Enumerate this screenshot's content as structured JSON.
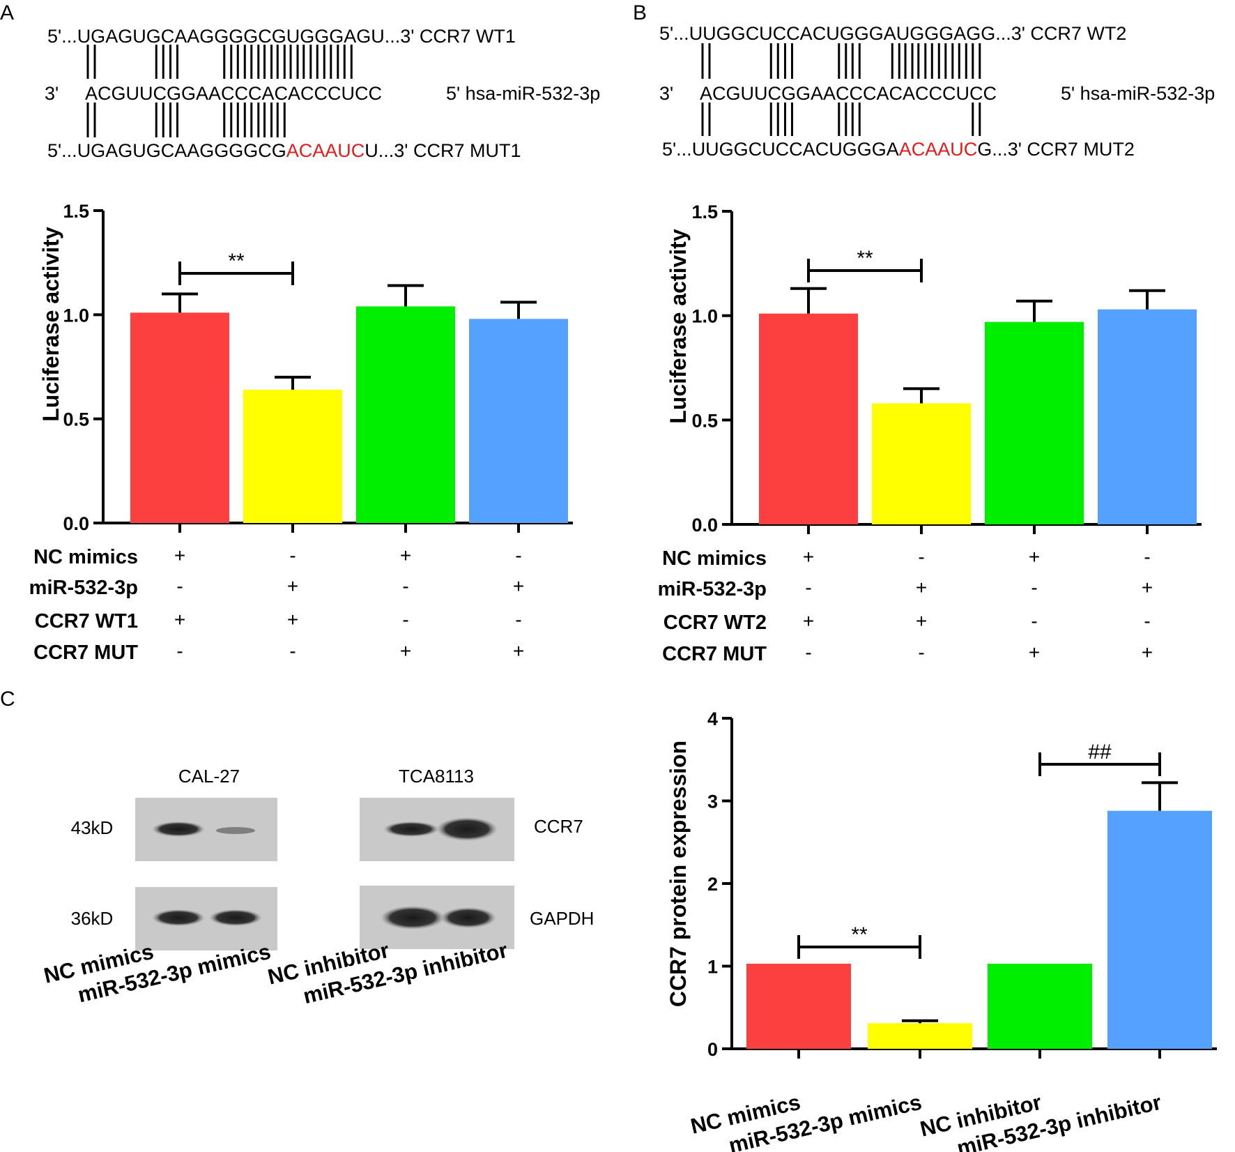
{
  "panel_labels": {
    "A": "A",
    "B": "B",
    "C": "C"
  },
  "sequences": {
    "A": {
      "wt": {
        "prefix": "5'...",
        "seq": "UGAGUGCAAGGGGCGUGGGAGU",
        "suffix": "...3' CCR7 WT1"
      },
      "mirna": {
        "prefix": "3'",
        "seq": "ACGUUCGGAACCCACACCCUCC",
        "suffix": "5' hsa-miR-532-3p"
      },
      "mut": {
        "prefix": "5'...",
        "seq_normal": "UGAGUGCAAGGGGCG",
        "seq_mut": "ACAAUC",
        "seq_tail": "U",
        "suffix": "...3' CCR7 MUT1"
      },
      "top_pairs": [
        0,
        5,
        6,
        10,
        11,
        12,
        13,
        14,
        15,
        16,
        17,
        18,
        19
      ],
      "bottom_pairs": [
        0,
        5,
        6,
        10,
        11,
        12,
        13,
        14
      ]
    },
    "B": {
      "wt": {
        "prefix": "5'...",
        "seq": "UUGGCUCCACUGGGAUGGGAGG",
        "suffix": "...3' CCR7 WT2"
      },
      "mirna": {
        "prefix": "3'",
        "seq": "ACGUUCGGAACCCACACCCUCC",
        "suffix": "5' hsa-miR-532-3p"
      },
      "mut": {
        "prefix": "5'...",
        "seq_normal": "UUGGCUCCACUGGGA",
        "seq_mut": "ACAAUC",
        "seq_tail": "G",
        "suffix": "...3' CCR7 MUT2"
      },
      "top_pairs": [
        0,
        5,
        6,
        10,
        11,
        14,
        15,
        16,
        17,
        18,
        19,
        20
      ],
      "bottom_pairs": [
        0,
        5,
        6,
        10,
        11,
        20
      ]
    }
  },
  "chart_data": [
    {
      "type": "bar",
      "panel": "A",
      "ylabel": "Luciferase activity",
      "ylim": [
        0,
        1.5
      ],
      "yticks": [
        "0.0",
        "0.5",
        "1.0",
        "1.5"
      ],
      "ytick_values": [
        0,
        0.5,
        1.0,
        1.5
      ],
      "values": [
        1.01,
        0.64,
        1.04,
        0.98
      ],
      "errors": [
        0.09,
        0.06,
        0.1,
        0.08
      ],
      "colors": [
        "#fc4040",
        "#ffff00",
        "#00ee00",
        "#55a1ff"
      ],
      "significance": [
        {
          "from": 0,
          "to": 1,
          "label": "**"
        }
      ],
      "condition_table": [
        {
          "label": "NC mimics",
          "signs": [
            "+",
            "-",
            "+",
            "-"
          ]
        },
        {
          "label": "miR-532-3p",
          "signs": [
            "-",
            "+",
            "-",
            "+"
          ]
        },
        {
          "label": "CCR7 WT1",
          "signs": [
            "+",
            "+",
            "-",
            "-"
          ]
        },
        {
          "label": "CCR7 MUT",
          "signs": [
            "-",
            "-",
            "+",
            "+"
          ]
        }
      ]
    },
    {
      "type": "bar",
      "panel": "B",
      "ylabel": "Luciferase activity",
      "ylim": [
        0,
        1.5
      ],
      "yticks": [
        "0.0",
        "0.5",
        "1.0",
        "1.5"
      ],
      "ytick_values": [
        0,
        0.5,
        1.0,
        1.5
      ],
      "values": [
        1.01,
        0.58,
        0.97,
        1.03
      ],
      "errors": [
        0.12,
        0.07,
        0.1,
        0.09
      ],
      "colors": [
        "#fc4040",
        "#ffff00",
        "#00ee00",
        "#55a1ff"
      ],
      "significance": [
        {
          "from": 0,
          "to": 1,
          "label": "**"
        }
      ],
      "condition_table": [
        {
          "label": "NC mimics",
          "signs": [
            "+",
            "-",
            "+",
            "-"
          ]
        },
        {
          "label": "miR-532-3p",
          "signs": [
            "-",
            "+",
            "-",
            "+"
          ]
        },
        {
          "label": "CCR7 WT2",
          "signs": [
            "+",
            "+",
            "-",
            "-"
          ]
        },
        {
          "label": "CCR7 MUT",
          "signs": [
            "-",
            "-",
            "+",
            "+"
          ]
        }
      ]
    },
    {
      "type": "bar",
      "panel": "C",
      "ylabel": "CCR7 protein expression",
      "ylim": [
        0,
        4
      ],
      "yticks": [
        "0",
        "1",
        "2",
        "3",
        "4"
      ],
      "ytick_values": [
        0,
        1,
        2,
        3,
        4
      ],
      "categories": [
        "NC mimics",
        "miR-532-3p mimics",
        "NC inhibitor",
        "miR-532-3p inhibitor"
      ],
      "values": [
        1.03,
        0.31,
        1.03,
        2.88
      ],
      "errors": [
        0,
        0.03,
        0,
        0.34
      ],
      "colors": [
        "#fc4040",
        "#ffff00",
        "#00ee00",
        "#55a1ff"
      ],
      "significance": [
        {
          "from": 0,
          "to": 1,
          "label": "**"
        },
        {
          "from": 2,
          "to": 3,
          "label": "##"
        }
      ]
    }
  ],
  "western_blot": {
    "cell_lines": [
      "CAL-27",
      "TCA8113"
    ],
    "markers": [
      "43kD",
      "36kD"
    ],
    "proteins": [
      "CCR7",
      "GAPDH"
    ],
    "lane_labels": [
      "NC mimics",
      "miR-532-3p mimics",
      "NC inhibitor",
      "miR-532-3p inhibitor"
    ]
  }
}
